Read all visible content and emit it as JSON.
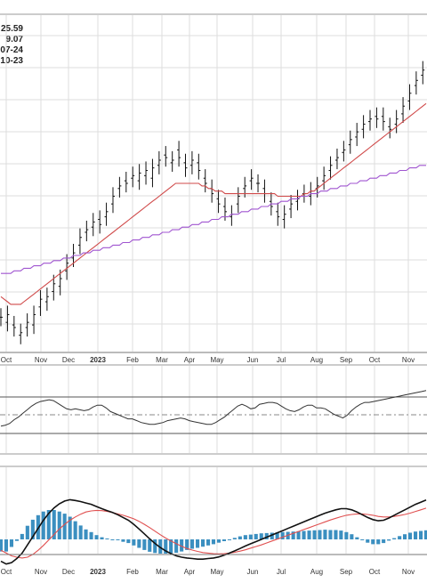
{
  "colors": {
    "price_bar": "#111111",
    "ma_short": "#d04a4a",
    "ma_long": "#a055d0",
    "oscillator": "#333333",
    "macd_line": "#111111",
    "signal_line": "#e05050",
    "histogram": "#3b8fc0",
    "grid": "#dddddd",
    "frame": "#777777"
  },
  "header_values": [
    "25.59",
    "9.07",
    "07-24",
    "10-23"
  ],
  "chart_data": [
    {
      "panel": "price",
      "type": "ohlc-bar",
      "x_labels": [
        "Oct",
        "Nov",
        "Dec",
        "2023",
        "Feb",
        "Mar",
        "Apr",
        "May",
        "Jun",
        "Jul",
        "Aug",
        "Sep",
        "Oct",
        "Nov"
      ],
      "grid": true,
      "closes": [
        22.8,
        22.6,
        22.9,
        22.5,
        22.4,
        22.1,
        22.2,
        22.4,
        22.6,
        22.5,
        22.9,
        23.2,
        23.5,
        23.4,
        23.6,
        23.8,
        24.1,
        24.0,
        24.3,
        24.6,
        24.9,
        25.1,
        25.3,
        25.6,
        25.9,
        26.1,
        26.2,
        26.3,
        26.5,
        26.6,
        26.4,
        26.7,
        26.9,
        27.2,
        27.5,
        27.8,
        27.9,
        28.1,
        28.0,
        28.2,
        28.3,
        28.1,
        28.4,
        28.3,
        28.5,
        28.2,
        28.6,
        28.7,
        28.9,
        29.1,
        29.0,
        28.8,
        28.9,
        29.3,
        29.0,
        28.8,
        28.6,
        28.7,
        28.9,
        28.8,
        28.5,
        28.2,
        28.0,
        27.8,
        27.6,
        27.4,
        27.2,
        27.1,
        26.9,
        26.7,
        26.8,
        27.2,
        27.5,
        27.8,
        27.9,
        28.1,
        28.2,
        28.0,
        28.0,
        27.8,
        27.6,
        27.3,
        27.1,
        26.9,
        26.7,
        26.6,
        26.8,
        27.0,
        27.2,
        27.3,
        27.4,
        27.6,
        27.6,
        27.5,
        27.7,
        27.8,
        27.9,
        28.1,
        28.3,
        28.5,
        28.7,
        28.9,
        29.0,
        29.2,
        29.3,
        29.5,
        29.7,
        29.8,
        30.0,
        30.1,
        30.3,
        30.4,
        30.5,
        30.6,
        30.5,
        30.6,
        30.4,
        30.2,
        30.1,
        30.3,
        30.5,
        30.7,
        31.0,
        31.2,
        31.5,
        31.8,
        32.0,
        32.2,
        32.4,
        32.5
      ],
      "ma_short": [
        23.6,
        23.5,
        23.4,
        23.3,
        23.3,
        23.3,
        23.3,
        23.4,
        23.5,
        23.6,
        23.7,
        23.8,
        23.9,
        24.0,
        24.1,
        24.2,
        24.3,
        24.4,
        24.5,
        24.6,
        24.7,
        24.8,
        24.9,
        25.0,
        25.1,
        25.2,
        25.3,
        25.4,
        25.5,
        25.6,
        25.7,
        25.8,
        25.9,
        26.0,
        26.1,
        26.2,
        26.3,
        26.4,
        26.5,
        26.6,
        26.7,
        26.8,
        26.9,
        27.0,
        27.1,
        27.2,
        27.3,
        27.4,
        27.5,
        27.6,
        27.7,
        27.8,
        27.9,
        28.0,
        28.0,
        28.0,
        28.0,
        28.0,
        28.0,
        28.0,
        28.0,
        27.9,
        27.9,
        27.8,
        27.8,
        27.7,
        27.7,
        27.7,
        27.6,
        27.6,
        27.6,
        27.6,
        27.6,
        27.6,
        27.6,
        27.6,
        27.6,
        27.6,
        27.6,
        27.6,
        27.6,
        27.6,
        27.6,
        27.6,
        27.5,
        27.5,
        27.5,
        27.5,
        27.5,
        27.5,
        27.5,
        27.5,
        27.6,
        27.6,
        27.7,
        27.7,
        27.8,
        27.9,
        28.0,
        28.1,
        28.2,
        28.3,
        28.4,
        28.5,
        28.6,
        28.7,
        28.8,
        28.9,
        29.0,
        29.1,
        29.2,
        29.3,
        29.4,
        29.5,
        29.6,
        29.7,
        29.8,
        29.9,
        30.0,
        30.1,
        30.2,
        30.3,
        30.4,
        30.5,
        30.6,
        30.7,
        30.8,
        30.9,
        31.0,
        31.1
      ],
      "ma_long": [
        24.5,
        24.5,
        24.5,
        24.5,
        24.6,
        24.6,
        24.6,
        24.7,
        24.7,
        24.7,
        24.8,
        24.8,
        24.8,
        24.9,
        24.9,
        24.9,
        25.0,
        25.0,
        25.0,
        25.1,
        25.1,
        25.1,
        25.2,
        25.2,
        25.2,
        25.3,
        25.3,
        25.3,
        25.4,
        25.4,
        25.4,
        25.5,
        25.5,
        25.5,
        25.6,
        25.6,
        25.6,
        25.7,
        25.7,
        25.7,
        25.8,
        25.8,
        25.8,
        25.9,
        25.9,
        25.9,
        26.0,
        26.0,
        26.0,
        26.1,
        26.1,
        26.1,
        26.2,
        26.2,
        26.2,
        26.3,
        26.3,
        26.3,
        26.4,
        26.4,
        26.4,
        26.5,
        26.5,
        26.5,
        26.6,
        26.6,
        26.6,
        26.7,
        26.7,
        26.7,
        26.8,
        26.8,
        26.8,
        26.9,
        26.9,
        26.9,
        27.0,
        27.0,
        27.0,
        27.1,
        27.1,
        27.1,
        27.2,
        27.2,
        27.2,
        27.3,
        27.3,
        27.3,
        27.4,
        27.4,
        27.4,
        27.5,
        27.5,
        27.5,
        27.6,
        27.6,
        27.6,
        27.7,
        27.7,
        27.7,
        27.8,
        27.8,
        27.8,
        27.9,
        27.9,
        27.9,
        28.0,
        28.0,
        28.0,
        28.1,
        28.1,
        28.1,
        28.2,
        28.2,
        28.2,
        28.3,
        28.3,
        28.3,
        28.4,
        28.4,
        28.4,
        28.5,
        28.5,
        28.5,
        28.6,
        28.6,
        28.6,
        28.7,
        28.7,
        28.7
      ]
    },
    {
      "panel": "oscillator",
      "type": "line",
      "reference_levels": [
        30,
        50,
        70
      ],
      "values": [
        38,
        39,
        41,
        45,
        48,
        52,
        56,
        60,
        63,
        65,
        66,
        67,
        66,
        63,
        60,
        57,
        56,
        57,
        56,
        55,
        56,
        59,
        61,
        61,
        58,
        54,
        52,
        50,
        48,
        46,
        46,
        44,
        42,
        41,
        40,
        40,
        41,
        42,
        44,
        45,
        46,
        47,
        46,
        44,
        43,
        42,
        41,
        40,
        40,
        42,
        45,
        48,
        52,
        56,
        60,
        62,
        60,
        57,
        58,
        62,
        63,
        64,
        64,
        63,
        60,
        57,
        55,
        54,
        56,
        59,
        61,
        61,
        58,
        58,
        57,
        54,
        51,
        49,
        47,
        50,
        55,
        59,
        62,
        64,
        64,
        65,
        66,
        67,
        68,
        69,
        70,
        71,
        72,
        73,
        74,
        75,
        76,
        77
      ]
    },
    {
      "panel": "macd",
      "type": "line+bar",
      "x_labels": [
        "Oct",
        "Nov",
        "Dec",
        "2023",
        "Feb",
        "Mar",
        "Apr",
        "May",
        "Jun",
        "Jul",
        "Aug",
        "Sep",
        "Oct",
        "Nov"
      ],
      "macd": [
        -0.8,
        -0.9,
        -0.85,
        -0.7,
        -0.5,
        -0.2,
        0.1,
        0.4,
        0.7,
        0.95,
        1.15,
        1.3,
        1.4,
        1.45,
        1.42,
        1.38,
        1.33,
        1.28,
        1.2,
        1.12,
        1.05,
        0.98,
        0.9,
        0.8,
        0.7,
        0.55,
        0.38,
        0.2,
        0.02,
        -0.15,
        -0.3,
        -0.42,
        -0.52,
        -0.6,
        -0.65,
        -0.68,
        -0.7,
        -0.72,
        -0.72,
        -0.7,
        -0.68,
        -0.64,
        -0.58,
        -0.5,
        -0.42,
        -0.33,
        -0.24,
        -0.16,
        -0.08,
        0.0,
        0.08,
        0.16,
        0.24,
        0.32,
        0.4,
        0.48,
        0.56,
        0.64,
        0.72,
        0.8,
        0.88,
        0.96,
        1.02,
        1.08,
        1.12,
        1.12,
        1.08,
        1.0,
        0.9,
        0.8,
        0.72,
        0.68,
        0.7,
        0.78,
        0.88,
        0.98,
        1.08,
        1.18,
        1.28,
        1.36,
        1.44
      ],
      "signal": [
        -0.4,
        -0.5,
        -0.6,
        -0.65,
        -0.68,
        -0.65,
        -0.55,
        -0.4,
        -0.22,
        -0.02,
        0.18,
        0.38,
        0.55,
        0.7,
        0.82,
        0.92,
        1.0,
        1.04,
        1.06,
        1.05,
        1.02,
        0.98,
        0.93,
        0.88,
        0.82,
        0.75,
        0.66,
        0.55,
        0.43,
        0.3,
        0.17,
        0.05,
        -0.06,
        -0.16,
        -0.25,
        -0.33,
        -0.39,
        -0.44,
        -0.48,
        -0.5,
        -0.52,
        -0.53,
        -0.52,
        -0.5,
        -0.47,
        -0.43,
        -0.38,
        -0.32,
        -0.26,
        -0.2,
        -0.13,
        -0.06,
        0.01,
        0.08,
        0.15,
        0.22,
        0.29,
        0.36,
        0.43,
        0.5,
        0.57,
        0.64,
        0.71,
        0.77,
        0.83,
        0.88,
        0.91,
        0.93,
        0.93,
        0.91,
        0.88,
        0.84,
        0.82,
        0.82,
        0.84,
        0.87,
        0.91,
        0.96,
        1.02,
        1.08,
        1.14
      ],
      "histogram": [
        -0.4,
        -0.4,
        -0.25,
        -0.05,
        0.18,
        0.45,
        0.65,
        0.8,
        0.92,
        0.97,
        0.97,
        0.92,
        0.85,
        0.75,
        0.6,
        0.46,
        0.33,
        0.24,
        0.14,
        0.07,
        0.03,
        0.0,
        -0.03,
        -0.08,
        -0.12,
        -0.2,
        -0.28,
        -0.35,
        -0.41,
        -0.45,
        -0.47,
        -0.47,
        -0.46,
        -0.44,
        -0.4,
        -0.35,
        -0.31,
        -0.28,
        -0.24,
        -0.2,
        -0.16,
        -0.11,
        -0.06,
        0.0,
        0.05,
        0.1,
        0.14,
        0.16,
        0.18,
        0.2,
        0.21,
        0.22,
        0.23,
        0.24,
        0.25,
        0.26,
        0.27,
        0.28,
        0.29,
        0.3,
        0.31,
        0.32,
        0.31,
        0.31,
        0.29,
        0.24,
        0.17,
        0.07,
        -0.03,
        -0.11,
        -0.16,
        -0.16,
        -0.12,
        -0.04,
        0.04,
        0.11,
        0.17,
        0.22,
        0.26,
        0.28,
        0.3
      ]
    }
  ]
}
